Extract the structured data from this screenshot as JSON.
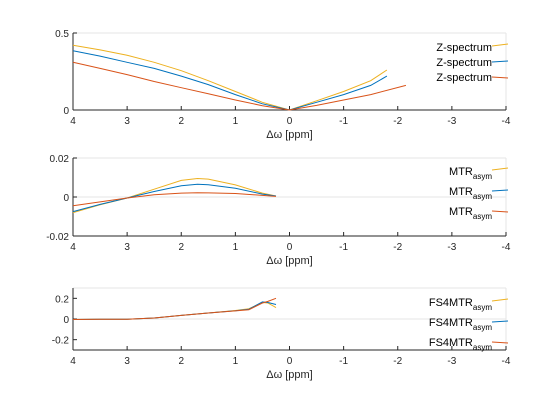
{
  "figure": {
    "background": "#ffffff"
  },
  "colors": {
    "blue": "#0072BD",
    "orange": "#D95319",
    "yellow": "#EDB120",
    "axis": "#262626",
    "grid": "#e6e6e6"
  },
  "chart_data": [
    {
      "type": "line",
      "xlabel": "Δω [ppm]",
      "x_reversed": true,
      "xlim": [
        -4,
        4
      ],
      "ylim": [
        0,
        0.5
      ],
      "xticks": [
        4,
        3,
        2,
        1,
        0,
        -1,
        -2,
        -3,
        -4
      ],
      "xtick_labels": [
        "4",
        "3",
        "2",
        "1",
        "0",
        "-1",
        "-2",
        "-3",
        "-4"
      ],
      "yticks": [
        0,
        0.5
      ],
      "ytick_labels": [
        "0",
        "0.5"
      ],
      "legend": {
        "position": "top-right",
        "boxed": false
      },
      "series": [
        {
          "name": "Z-spectrum",
          "color": "#EDB120",
          "points": [
            [
              4,
              0.42
            ],
            [
              3.5,
              0.39
            ],
            [
              3,
              0.355
            ],
            [
              2.5,
              0.31
            ],
            [
              2,
              0.255
            ],
            [
              1.5,
              0.19
            ],
            [
              1,
              0.12
            ],
            [
              0.5,
              0.05
            ],
            [
              0,
              0.0
            ],
            [
              -0.5,
              0.06
            ],
            [
              -1,
              0.12
            ],
            [
              -1.5,
              0.19
            ],
            [
              -1.8,
              0.26
            ]
          ]
        },
        {
          "name": "Z-spectrum",
          "color": "#0072BD",
          "points": [
            [
              4,
              0.385
            ],
            [
              3.5,
              0.35
            ],
            [
              3,
              0.31
            ],
            [
              2.5,
              0.27
            ],
            [
              2,
              0.22
            ],
            [
              1.5,
              0.165
            ],
            [
              1,
              0.1
            ],
            [
              0.5,
              0.04
            ],
            [
              0,
              0.0
            ],
            [
              -0.5,
              0.05
            ],
            [
              -1,
              0.1
            ],
            [
              -1.5,
              0.16
            ],
            [
              -1.8,
              0.22
            ]
          ]
        },
        {
          "name": "Z-spectrum",
          "color": "#D95319",
          "points": [
            [
              4,
              0.31
            ],
            [
              3.5,
              0.27
            ],
            [
              3,
              0.23
            ],
            [
              2.5,
              0.185
            ],
            [
              2,
              0.145
            ],
            [
              1.5,
              0.105
            ],
            [
              1,
              0.065
            ],
            [
              0.5,
              0.028
            ],
            [
              0,
              0.0
            ],
            [
              -0.5,
              0.03
            ],
            [
              -1,
              0.065
            ],
            [
              -1.5,
              0.1
            ],
            [
              -2.15,
              0.16
            ]
          ]
        }
      ]
    },
    {
      "type": "line",
      "xlabel": "Δω [ppm]",
      "x_reversed": true,
      "xlim": [
        -4,
        4
      ],
      "ylim": [
        -0.02,
        0.02
      ],
      "xticks": [
        4,
        3,
        2,
        1,
        0,
        -1,
        -2,
        -3,
        -4
      ],
      "xtick_labels": [
        "4",
        "3",
        "2",
        "1",
        "0",
        "-1",
        "-2",
        "-3",
        "-4"
      ],
      "yticks": [
        -0.02,
        0,
        0.02
      ],
      "ytick_labels": [
        "-0.02",
        "0",
        "0.02"
      ],
      "legend": {
        "position": "top-right",
        "boxed": false
      },
      "series": [
        {
          "name": "MTR",
          "name_sub": "asym",
          "color": "#EDB120",
          "points": [
            [
              4,
              -0.008
            ],
            [
              3.5,
              -0.004
            ],
            [
              3,
              -0.0005
            ],
            [
              2.5,
              0.004
            ],
            [
              2,
              0.0085
            ],
            [
              1.7,
              0.0095
            ],
            [
              1.5,
              0.0092
            ],
            [
              1,
              0.0062
            ],
            [
              0.5,
              0.002
            ],
            [
              0.25,
              0.0005
            ]
          ]
        },
        {
          "name": "MTR",
          "name_sub": "asym",
          "color": "#0072BD",
          "points": [
            [
              4,
              -0.0075
            ],
            [
              3.5,
              -0.0038
            ],
            [
              3,
              -0.0005
            ],
            [
              2.5,
              0.0028
            ],
            [
              2,
              0.0058
            ],
            [
              1.7,
              0.0065
            ],
            [
              1.5,
              0.0063
            ],
            [
              1,
              0.0045
            ],
            [
              0.5,
              0.0015
            ],
            [
              0.25,
              0.0005
            ]
          ]
        },
        {
          "name": "MTR",
          "name_sub": "asym",
          "color": "#D95319",
          "points": [
            [
              4,
              -0.0045
            ],
            [
              3.5,
              -0.0025
            ],
            [
              3,
              -0.0005
            ],
            [
              2.5,
              0.0012
            ],
            [
              2,
              0.002
            ],
            [
              1.7,
              0.0022
            ],
            [
              1.5,
              0.0021
            ],
            [
              1,
              0.0018
            ],
            [
              0.5,
              0.0008
            ],
            [
              0.25,
              0.0003
            ]
          ]
        }
      ]
    },
    {
      "type": "line",
      "xlabel": "Δω [ppm]",
      "x_reversed": true,
      "xlim": [
        -4,
        4
      ],
      "ylim": [
        -0.3,
        0.3
      ],
      "xticks": [
        4,
        3,
        2,
        1,
        0,
        -1,
        -2,
        -3,
        -4
      ],
      "xtick_labels": [
        "4",
        "3",
        "2",
        "1",
        "0",
        "-1",
        "-2",
        "-3",
        "-4"
      ],
      "yticks": [
        -0.2,
        0,
        0.2
      ],
      "ytick_labels": [
        "-0.2",
        "0",
        "0.2"
      ],
      "legend": {
        "position": "top-right",
        "boxed": false
      },
      "series": [
        {
          "name": "FS4MTR",
          "name_sub": "asym",
          "color": "#EDB120",
          "points": [
            [
              4,
              -0.005
            ],
            [
              3.5,
              -0.003
            ],
            [
              3,
              -0.002
            ],
            [
              2.5,
              0.01
            ],
            [
              2,
              0.035
            ],
            [
              1.5,
              0.058
            ],
            [
              1,
              0.082
            ],
            [
              0.75,
              0.1
            ],
            [
              0.5,
              0.16
            ],
            [
              0.4,
              0.155
            ],
            [
              0.25,
              0.11
            ]
          ]
        },
        {
          "name": "FS4MTR",
          "name_sub": "asym",
          "color": "#0072BD",
          "points": [
            [
              4,
              -0.005
            ],
            [
              3.5,
              -0.003
            ],
            [
              3,
              -0.002
            ],
            [
              2.5,
              0.01
            ],
            [
              2,
              0.035
            ],
            [
              1.5,
              0.058
            ],
            [
              1,
              0.08
            ],
            [
              0.75,
              0.095
            ],
            [
              0.5,
              0.165
            ],
            [
              0.4,
              0.16
            ],
            [
              0.25,
              0.14
            ]
          ]
        },
        {
          "name": "FS4MTR",
          "name_sub": "asym",
          "color": "#D95319",
          "points": [
            [
              4,
              -0.005
            ],
            [
              3.5,
              -0.003
            ],
            [
              3,
              -0.002
            ],
            [
              2.5,
              0.01
            ],
            [
              2,
              0.035
            ],
            [
              1.5,
              0.058
            ],
            [
              1,
              0.078
            ],
            [
              0.75,
              0.09
            ],
            [
              0.5,
              0.155
            ],
            [
              0.4,
              0.17
            ],
            [
              0.25,
              0.2
            ]
          ]
        }
      ]
    }
  ]
}
